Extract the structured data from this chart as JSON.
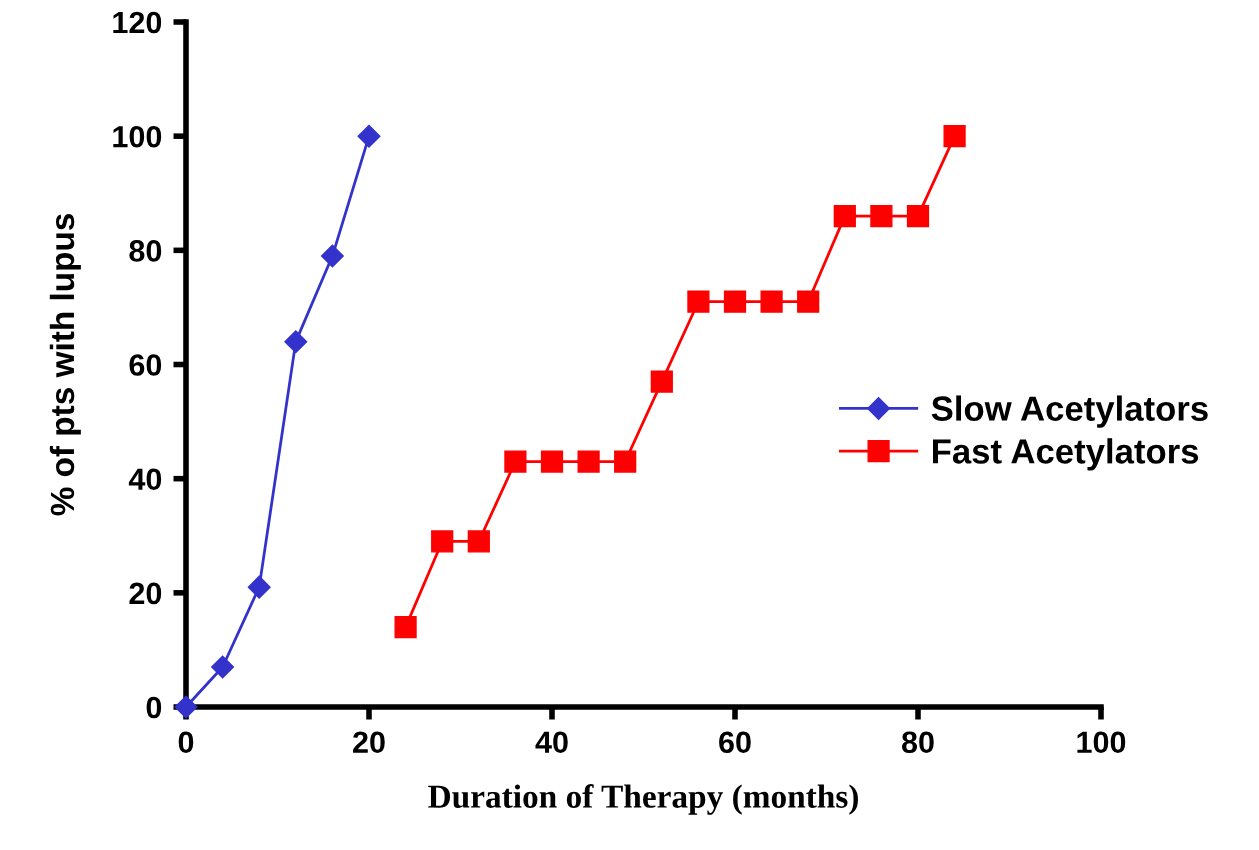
{
  "chart_data": {
    "type": "line",
    "xlabel": "Duration of Therapy (months)",
    "ylabel": "% of pts with lupus",
    "series": [
      {
        "name": "Slow Acetylators",
        "color": "#3333cc",
        "marker": "diamond",
        "x": [
          0,
          4,
          8,
          12,
          16,
          20
        ],
        "values": [
          0,
          7,
          21,
          64,
          79,
          100
        ]
      },
      {
        "name": "Fast Acetylators",
        "color": "#ff0000",
        "marker": "square",
        "x": [
          24,
          28,
          32,
          36,
          40,
          44,
          48,
          52,
          56,
          60,
          64,
          68,
          72,
          76,
          80,
          84
        ],
        "values": [
          14,
          29,
          29,
          43,
          43,
          43,
          43,
          57,
          71,
          71,
          71,
          71,
          86,
          86,
          86,
          100
        ]
      }
    ],
    "xlim": [
      0,
      100
    ],
    "xticks": [
      0,
      20,
      40,
      60,
      80,
      100
    ],
    "ylim": [
      0,
      120
    ],
    "yticks": [
      0,
      20,
      40,
      60,
      80,
      100,
      120
    ],
    "grid": false,
    "legend": "right",
    "line_style": "solid"
  }
}
